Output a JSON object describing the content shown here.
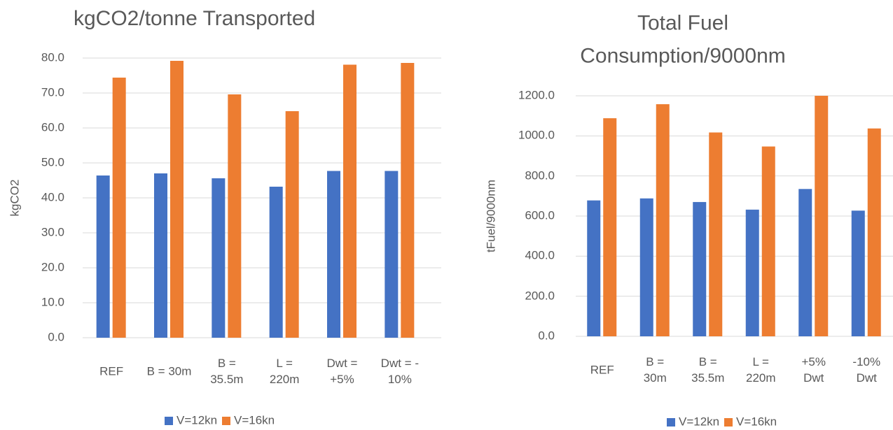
{
  "chart_data": [
    {
      "type": "bar",
      "title": "kgCO2/tonne Transported",
      "y_label": "kgCO2",
      "categories": [
        "REF",
        "B = 30m",
        "B =\n35.5m",
        "L =\n220m",
        "Dwt =\n+5%",
        "Dwt = -\n10%"
      ],
      "series": [
        {
          "name": "V=12kn",
          "color": "#4472c4",
          "values": [
            46.4,
            47.0,
            45.6,
            43.2,
            47.7,
            47.7
          ]
        },
        {
          "name": "V=16kn",
          "color": "#ed7d31",
          "values": [
            74.4,
            79.2,
            69.6,
            64.8,
            78.1,
            78.6
          ]
        }
      ],
      "ylim": [
        0,
        80
      ],
      "yticks": [
        {
          "value": 0,
          "label": "0.0"
        },
        {
          "value": 10,
          "label": "10.0"
        },
        {
          "value": 20,
          "label": "20.0"
        },
        {
          "value": 30,
          "label": "30.0"
        },
        {
          "value": 40,
          "label": "40.0"
        },
        {
          "value": 50,
          "label": "50.0"
        },
        {
          "value": 60,
          "label": "60.0"
        },
        {
          "value": 70,
          "label": "70.0"
        },
        {
          "value": 80,
          "label": "80.0"
        }
      ],
      "grid": true,
      "legend": "bottom"
    },
    {
      "type": "bar",
      "title": "Total Fuel\nConsumption/9000nm",
      "y_label": "tFuel/9000nm",
      "categories": [
        "REF",
        "B =\n30m",
        "B =\n35.5m",
        "L =\n220m",
        "+5%\nDwt",
        "-10%\nDwt"
      ],
      "series": [
        {
          "name": "V=12kn",
          "color": "#4472c4",
          "values": [
            678,
            688,
            670,
            632,
            735,
            627
          ]
        },
        {
          "name": "V=16kn",
          "color": "#ed7d31",
          "values": [
            1088,
            1158,
            1017,
            947,
            1200,
            1037
          ]
        }
      ],
      "ylim": [
        0,
        1200
      ],
      "yticks": [
        {
          "value": 0,
          "label": "0.0"
        },
        {
          "value": 200,
          "label": "200.0"
        },
        {
          "value": 400,
          "label": "400.0"
        },
        {
          "value": 600,
          "label": "600.0"
        },
        {
          "value": 800,
          "label": "800.0"
        },
        {
          "value": 1000,
          "label": "1000.0"
        },
        {
          "value": 1200,
          "label": "1200.0"
        }
      ],
      "grid": true,
      "legend": "bottom"
    }
  ]
}
